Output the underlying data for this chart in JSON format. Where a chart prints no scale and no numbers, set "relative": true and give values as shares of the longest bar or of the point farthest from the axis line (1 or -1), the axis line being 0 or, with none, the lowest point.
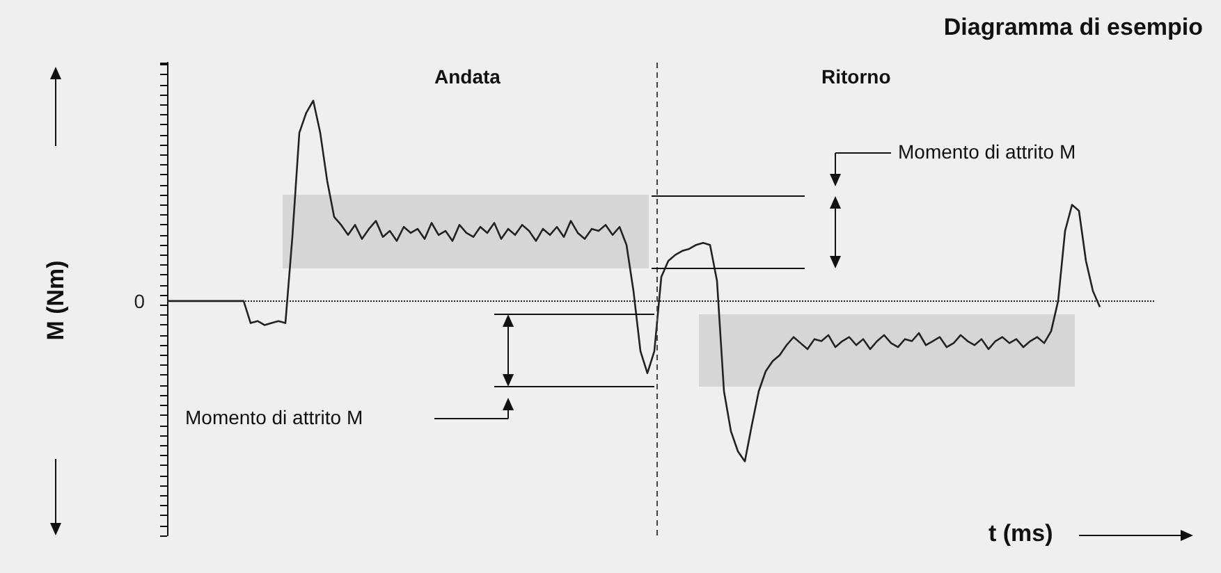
{
  "chart_data": {
    "type": "line",
    "title": "Diagramma di esempio",
    "xlabel": "t (ms)",
    "ylabel": "M (Nm)",
    "relative": true,
    "grid": false,
    "annotations": [
      "Andata",
      "Ritorno",
      "Momento di attrito M",
      "Momento di attrito M"
    ],
    "ref_lines": [
      {
        "axis": "y",
        "value": 0,
        "label": "0",
        "line_style": "dotted",
        "color": "#222222"
      }
    ],
    "categories": [
      null,
      null,
      null,
      null,
      null,
      null,
      null,
      null,
      null,
      null,
      null,
      null,
      null,
      null,
      null,
      null,
      null,
      null,
      null,
      null,
      null,
      null,
      null,
      null,
      null,
      null,
      null,
      null,
      null,
      null,
      null,
      null,
      null,
      null,
      null,
      null,
      null,
      null,
      null,
      null,
      null,
      null,
      null,
      null,
      null,
      null,
      null,
      null,
      null,
      null,
      null,
      null,
      null,
      null,
      null,
      null,
      null,
      null,
      null,
      null,
      null,
      null,
      null,
      null,
      null,
      null,
      null,
      null,
      null,
      null,
      null,
      null,
      null,
      null,
      null,
      null,
      null,
      null,
      null,
      null,
      null,
      null,
      null,
      null,
      null,
      null,
      null,
      null,
      null,
      null,
      null,
      null,
      null,
      null,
      null,
      null,
      null,
      null,
      null,
      null,
      null,
      null,
      null,
      null,
      null,
      null,
      null,
      null,
      null,
      null,
      null,
      null,
      null,
      null,
      null,
      null,
      null,
      null,
      null,
      null,
      null,
      null,
      null,
      null,
      null,
      null,
      null,
      null,
      null,
      null,
      null,
      null,
      null,
      null,
      null,
      null,
      null,
      null,
      null,
      null,
      null,
      null,
      null
    ],
    "series": [
      {
        "color": "#222222",
        "values": [
          0,
          0,
          0,
          0,
          0,
          0,
          0,
          0,
          0,
          0,
          0,
          0,
          -0.11,
          -0.1,
          -0.12,
          -0.11,
          -0.1,
          -0.11,
          0.32,
          0.84,
          0.94,
          1.0,
          0.84,
          0.6,
          0.42,
          0.38,
          0.33,
          0.38,
          0.31,
          0.36,
          0.4,
          0.32,
          0.35,
          0.3,
          0.37,
          0.34,
          0.36,
          0.31,
          0.39,
          0.33,
          0.35,
          0.3,
          0.38,
          0.34,
          0.32,
          0.37,
          0.34,
          0.39,
          0.31,
          0.36,
          0.33,
          0.38,
          0.35,
          0.3,
          0.36,
          0.33,
          0.37,
          0.32,
          0.4,
          0.34,
          0.31,
          0.36,
          0.35,
          0.38,
          0.33,
          0.37,
          0.28,
          0.05,
          -0.25,
          -0.36,
          -0.25,
          0.12,
          0.2,
          0.23,
          0.25,
          0.26,
          0.28,
          0.29,
          0.28,
          0.1,
          -0.45,
          -0.65,
          -0.75,
          -0.8,
          -0.62,
          -0.45,
          -0.35,
          -0.3,
          -0.27,
          -0.22,
          -0.18,
          -0.21,
          -0.24,
          -0.19,
          -0.2,
          -0.17,
          -0.23,
          -0.2,
          -0.18,
          -0.22,
          -0.19,
          -0.24,
          -0.2,
          -0.17,
          -0.21,
          -0.23,
          -0.19,
          -0.2,
          -0.16,
          -0.22,
          -0.2,
          -0.18,
          -0.23,
          -0.21,
          -0.17,
          -0.2,
          -0.22,
          -0.19,
          -0.24,
          -0.2,
          -0.18,
          -0.21,
          -0.19,
          -0.23,
          -0.2,
          -0.18,
          -0.21,
          -0.15,
          0.0,
          0.35,
          0.48,
          0.45,
          0.2,
          0.05,
          -0.03,
          null,
          null,
          null,
          null,
          null,
          null,
          null,
          null
        ]
      }
    ]
  }
}
